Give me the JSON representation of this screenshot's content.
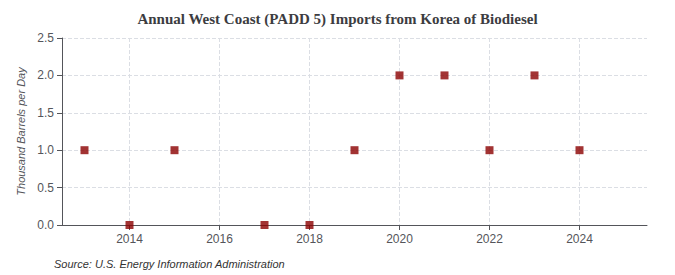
{
  "chart_data": {
    "type": "scatter",
    "title": "Annual West Coast (PADD 5) Imports from Korea of Biodiesel",
    "ylabel": "Thousand Barrels per Day",
    "annotation": "Source: U.S. Energy Information Administration",
    "x": [
      2013,
      2014,
      2015,
      2017,
      2018,
      2019,
      2020,
      2021,
      2022,
      2023,
      2024
    ],
    "values": [
      1.0,
      0.0,
      1.0,
      0.0,
      0.0,
      1.0,
      2.0,
      2.0,
      1.0,
      2.0,
      1.0
    ],
    "color": "#8b0000",
    "marker": "square",
    "xlim": [
      2012.5,
      2025.5
    ],
    "xticks": [
      2014,
      2016,
      2018,
      2020,
      2022,
      2024
    ],
    "ylim": [
      0,
      2.5
    ],
    "yticks": [
      {
        "value": 0,
        "label": "0.0"
      },
      0.5,
      {
        "value": 1,
        "label": "1.0"
      },
      1.5,
      {
        "value": 2,
        "label": "2.0"
      },
      2.5
    ],
    "grid": true
  }
}
